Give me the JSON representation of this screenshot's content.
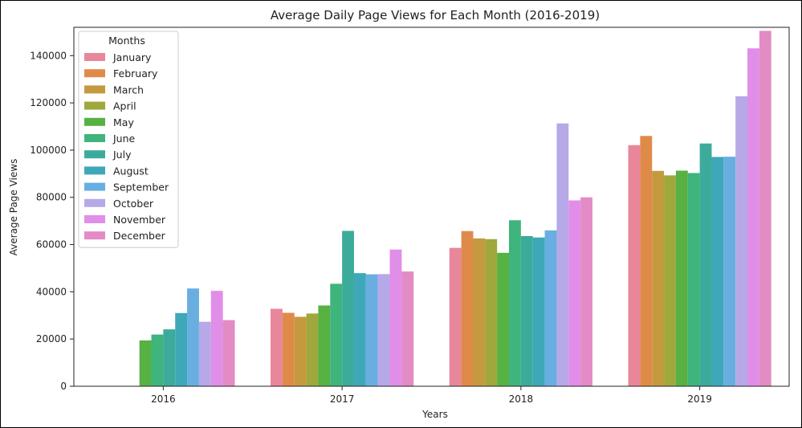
{
  "chart_data": {
    "type": "bar",
    "title": "Average Daily Page Views for Each Month (2016-2019)",
    "xlabel": "Years",
    "ylabel": "Average Page Views",
    "categories": [
      "2016",
      "2017",
      "2018",
      "2019"
    ],
    "ylim": [
      0,
      152000
    ],
    "yticks": [
      0,
      20000,
      40000,
      60000,
      80000,
      100000,
      120000,
      140000
    ],
    "ytick_labels": [
      "0",
      "20000",
      "40000",
      "60000",
      "80000",
      "100000",
      "120000",
      "140000"
    ],
    "grid": false,
    "legend": {
      "title": "Months",
      "placement": "top-left"
    },
    "series": [
      {
        "name": "January",
        "color": "#e8869a",
        "values": [
          null,
          32800,
          58600,
          102100
        ]
      },
      {
        "name": "February",
        "color": "#e08a4a",
        "values": [
          null,
          31100,
          65700,
          106000
        ]
      },
      {
        "name": "March",
        "color": "#c59a3e",
        "values": [
          null,
          29400,
          62600,
          91200
        ]
      },
      {
        "name": "April",
        "color": "#9ea83c",
        "values": [
          null,
          30800,
          62300,
          89300
        ]
      },
      {
        "name": "May",
        "color": "#57b143",
        "values": [
          19400,
          34200,
          56500,
          91300
        ]
      },
      {
        "name": "June",
        "color": "#3fb47c",
        "values": [
          21900,
          43400,
          70300,
          90300
        ]
      },
      {
        "name": "July",
        "color": "#3dab9b",
        "values": [
          24100,
          65800,
          63600,
          102800
        ]
      },
      {
        "name": "August",
        "color": "#3ea8b8",
        "values": [
          31000,
          47900,
          63000,
          97100
        ]
      },
      {
        "name": "September",
        "color": "#68aee1",
        "values": [
          41400,
          47400,
          66000,
          97200
        ]
      },
      {
        "name": "October",
        "color": "#b7a8e8",
        "values": [
          27300,
          47500,
          111300,
          122800
        ]
      },
      {
        "name": "November",
        "color": "#e08ee8",
        "values": [
          40400,
          57900,
          78700,
          143100
        ]
      },
      {
        "name": "December",
        "color": "#e38bc4",
        "values": [
          28000,
          48600,
          80000,
          150500
        ]
      }
    ]
  }
}
